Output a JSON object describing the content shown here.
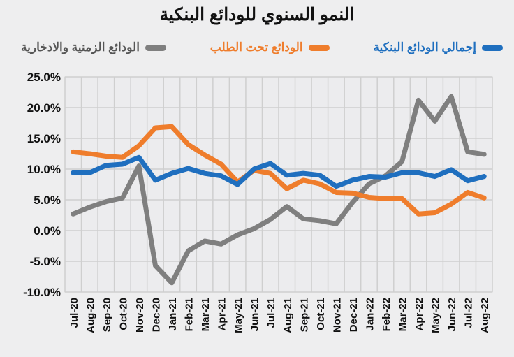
{
  "chart_data": {
    "type": "line",
    "title": "النمو السنوي للودائع البنكية",
    "categories": [
      "Jul-20",
      "Aug-20",
      "Sep-20",
      "Oct-20",
      "Nov-20",
      "Dec-20",
      "Jan-21",
      "Feb-21",
      "Mar-21",
      "Apr-21",
      "May-21",
      "Jun-21",
      "Jul-21",
      "Aug-21",
      "Sep-21",
      "Oct-21",
      "Nov-21",
      "Dec-21",
      "Jan-22",
      "Feb-22",
      "Mar-22",
      "Apr-22",
      "May-22",
      "Jun-22",
      "Jul-22",
      "Aug-22"
    ],
    "ylim": [
      -10,
      25
    ],
    "yticks": [
      "-10.0%",
      "-5.0%",
      "0.0%",
      "5.0%",
      "10.0%",
      "15.0%",
      "20.0%",
      "25.0%"
    ],
    "grid": true,
    "legend_position": "top",
    "series": [
      {
        "name": "إجمالي الودائع البنكية",
        "color": "#1f6fbf",
        "values": [
          9.4,
          9.4,
          10.6,
          10.8,
          11.9,
          8.2,
          9.3,
          10.1,
          9.3,
          8.9,
          7.5,
          10.0,
          10.9,
          9.0,
          9.3,
          9.0,
          7.2,
          8.2,
          8.8,
          8.7,
          9.4,
          9.4,
          8.8,
          9.9,
          8.1,
          8.8
        ]
      },
      {
        "name": "الودائع تحت الطلب",
        "color": "#ef7d2c",
        "values": [
          12.8,
          12.5,
          12.1,
          11.9,
          13.8,
          16.7,
          16.9,
          14.0,
          12.3,
          10.8,
          7.9,
          9.8,
          9.3,
          6.8,
          8.2,
          7.6,
          6.2,
          6.1,
          5.4,
          5.2,
          5.2,
          2.7,
          2.9,
          4.3,
          6.2,
          5.3
        ]
      },
      {
        "name": "الودائع الزمنية والادخارية",
        "color": "#7f7f7f",
        "values": [
          2.7,
          3.8,
          4.7,
          5.3,
          10.5,
          -5.7,
          -8.5,
          -3.3,
          -1.7,
          -2.2,
          -0.7,
          0.3,
          1.8,
          3.9,
          1.9,
          1.6,
          1.1,
          4.6,
          7.6,
          8.9,
          11.2,
          21.2,
          17.8,
          21.8,
          12.8,
          12.4
        ]
      }
    ]
  }
}
